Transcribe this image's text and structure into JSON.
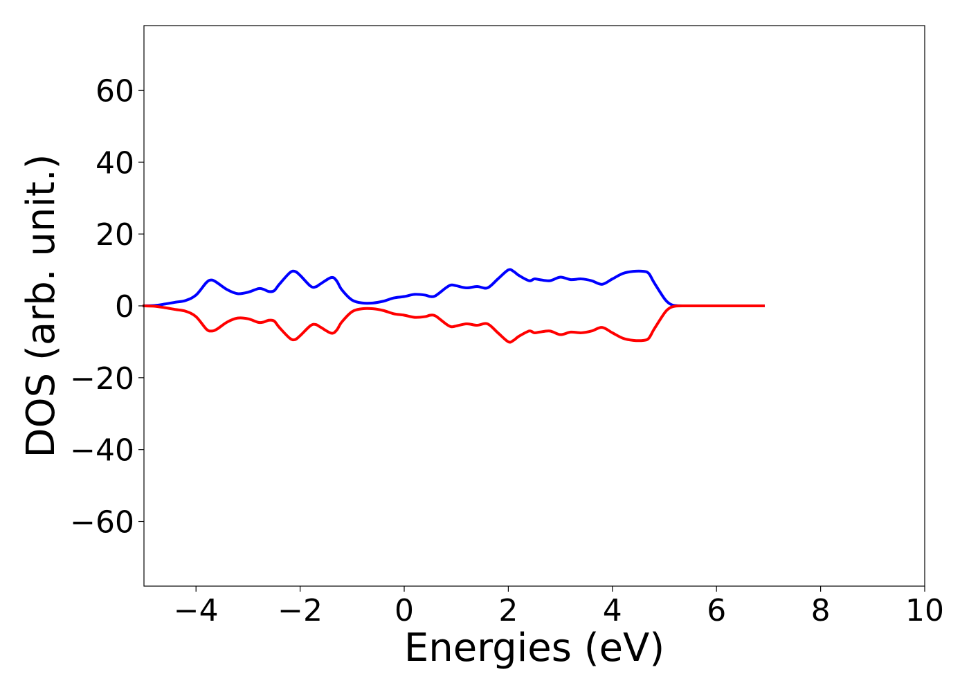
{
  "chart_data": {
    "type": "line",
    "title": "",
    "xlabel": "Energies (eV)",
    "ylabel": "DOS (arb. unit.)",
    "xlim": [
      -5,
      10
    ],
    "ylim": [
      -78,
      78
    ],
    "xticks": [
      -4,
      -2,
      0,
      2,
      4,
      6,
      8,
      10
    ],
    "xtick_labels": [
      "−4",
      "−2",
      "0",
      "2",
      "4",
      "6",
      "8",
      "10"
    ],
    "yticks": [
      60,
      40,
      20,
      0,
      -20,
      -40,
      -60
    ],
    "ytick_labels": [
      "60",
      "40",
      "20",
      "0",
      "−20",
      "−40",
      "−60"
    ],
    "grid": false,
    "legend": "none",
    "series": [
      {
        "color": "#0000ff",
        "x": [
          -5.0,
          -4.8,
          -4.6,
          -4.4,
          -4.2,
          -4.0,
          -3.8,
          -3.7,
          -3.6,
          -3.4,
          -3.2,
          -3.0,
          -2.8,
          -2.7,
          -2.6,
          -2.5,
          -2.4,
          -2.2,
          -2.1,
          -2.0,
          -1.8,
          -1.7,
          -1.6,
          -1.4,
          -1.3,
          -1.2,
          -1.0,
          -0.8,
          -0.6,
          -0.4,
          -0.2,
          0.0,
          0.2,
          0.4,
          0.5,
          0.6,
          0.8,
          0.9,
          1.0,
          1.2,
          1.4,
          1.6,
          1.8,
          2.0,
          2.1,
          2.2,
          2.4,
          2.5,
          2.6,
          2.8,
          3.0,
          3.2,
          3.4,
          3.6,
          3.8,
          4.0,
          4.2,
          4.4,
          4.6,
          4.7,
          4.8,
          5.0,
          5.1,
          5.2,
          5.4,
          6.0,
          6.5,
          6.9
        ],
        "y": [
          0.0,
          0.1,
          0.5,
          1.0,
          1.5,
          3.0,
          6.5,
          7.2,
          6.5,
          4.5,
          3.4,
          3.8,
          4.8,
          4.6,
          4.0,
          4.2,
          6.0,
          9.2,
          9.6,
          8.5,
          5.5,
          5.3,
          6.2,
          7.9,
          7.0,
          4.5,
          1.6,
          0.8,
          0.8,
          1.3,
          2.2,
          2.6,
          3.2,
          3.0,
          2.6,
          2.8,
          5.0,
          5.8,
          5.6,
          5.0,
          5.4,
          5.0,
          7.5,
          10.0,
          9.6,
          8.5,
          7.0,
          7.5,
          7.3,
          7.0,
          8.0,
          7.3,
          7.5,
          7.0,
          6.0,
          7.5,
          9.0,
          9.6,
          9.6,
          9.0,
          6.5,
          2.0,
          0.6,
          0.1,
          0.0,
          0.0,
          0.0,
          0.0
        ]
      },
      {
        "color": "#ff0000",
        "x": [
          -5.0,
          -4.8,
          -4.6,
          -4.4,
          -4.2,
          -4.0,
          -3.8,
          -3.7,
          -3.6,
          -3.4,
          -3.2,
          -3.0,
          -2.8,
          -2.7,
          -2.6,
          -2.5,
          -2.4,
          -2.2,
          -2.1,
          -2.0,
          -1.8,
          -1.7,
          -1.6,
          -1.4,
          -1.3,
          -1.2,
          -1.0,
          -0.8,
          -0.6,
          -0.4,
          -0.2,
          0.0,
          0.2,
          0.4,
          0.5,
          0.6,
          0.8,
          0.9,
          1.0,
          1.2,
          1.4,
          1.6,
          1.8,
          2.0,
          2.1,
          2.2,
          2.4,
          2.5,
          2.6,
          2.8,
          3.0,
          3.2,
          3.4,
          3.6,
          3.8,
          4.0,
          4.2,
          4.4,
          4.6,
          4.7,
          4.8,
          5.0,
          5.1,
          5.2,
          5.4,
          6.0,
          6.5,
          6.9
        ],
        "y": [
          0.0,
          -0.1,
          -0.5,
          -1.0,
          -1.5,
          -3.0,
          -6.5,
          -7.0,
          -6.5,
          -4.5,
          -3.4,
          -3.6,
          -4.6,
          -4.5,
          -4.0,
          -4.2,
          -6.0,
          -9.0,
          -9.4,
          -8.3,
          -5.5,
          -5.2,
          -6.0,
          -7.6,
          -6.8,
          -4.5,
          -1.6,
          -0.8,
          -0.8,
          -1.3,
          -2.2,
          -2.6,
          -3.2,
          -3.0,
          -2.6,
          -2.8,
          -5.0,
          -5.8,
          -5.6,
          -5.0,
          -5.4,
          -5.0,
          -7.5,
          -10.0,
          -9.6,
          -8.5,
          -7.0,
          -7.5,
          -7.3,
          -7.0,
          -8.0,
          -7.3,
          -7.5,
          -7.0,
          -6.0,
          -7.5,
          -9.0,
          -9.6,
          -9.6,
          -9.0,
          -6.5,
          -2.0,
          -0.6,
          -0.1,
          0.0,
          0.0,
          0.0,
          0.0
        ]
      }
    ]
  }
}
